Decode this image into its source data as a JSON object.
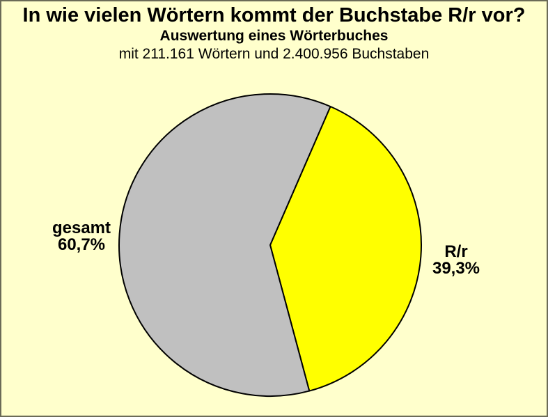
{
  "page": {
    "background_color": "#FFFFCC",
    "frame_color": "#6b6b57"
  },
  "chart_data": {
    "type": "pie",
    "title": "In wie vielen Wörtern kommt der Buchstabe R/r vor?",
    "subtitle": "Auswertung eines Wörterbuches",
    "description": "mit 211.161 Wörtern und 2.400.956 Buchstaben",
    "total_words": "211.161",
    "total_letters": "2.400.956",
    "slices": [
      {
        "label": "R/r",
        "value_percent": 39.3,
        "value_label": "39,3%",
        "color": "#FFFF00"
      },
      {
        "label": "gesamt",
        "value_percent": 60.7,
        "value_label": "60,7%",
        "color": "#C0C0C0"
      }
    ],
    "start_angle_deg_clockwise_from_top": 23.5,
    "stroke_color": "#000000",
    "stroke_width": 2,
    "legend_position": "labels beside slices",
    "grid": false
  }
}
